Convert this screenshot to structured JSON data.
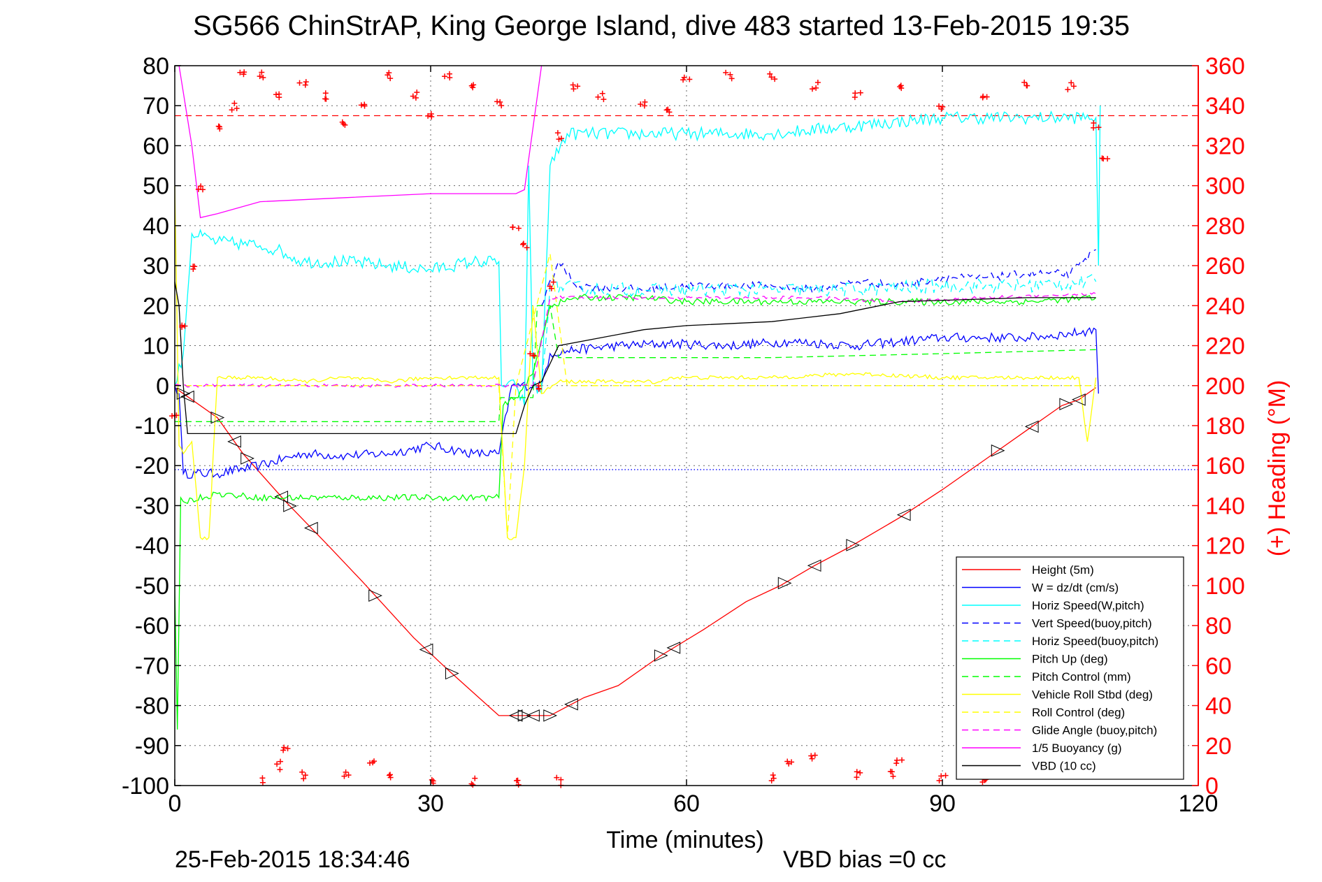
{
  "chart_data": {
    "type": "line",
    "title": "SG566 ChinStrAP, King George Island, dive 483 started 13-Feb-2015 19:35",
    "xlabel": "Time (minutes)",
    "ylabel_right": "(+) Heading (°M)",
    "footer_left": "25-Feb-2015 18:34:46",
    "footer_right": "VBD bias =0 cc",
    "xlim": [
      0,
      120
    ],
    "ylim_left": [
      -100,
      80
    ],
    "ylim_right": [
      0,
      360
    ],
    "x_ticks": [
      0,
      30,
      60,
      90,
      120
    ],
    "y_ticks_left": [
      80,
      70,
      60,
      50,
      40,
      30,
      20,
      10,
      0,
      -10,
      -20,
      -30,
      -40,
      -50,
      -60,
      -70,
      -80,
      -90,
      -100
    ],
    "y_ticks_right": [
      360,
      340,
      320,
      300,
      280,
      260,
      240,
      220,
      200,
      180,
      160,
      140,
      120,
      100,
      80,
      60,
      40,
      20,
      0
    ],
    "grid": true,
    "legend_position": "bottom-right",
    "colors": {
      "red": "#ff0000",
      "blue": "#0000ff",
      "cyan": "#00ffff",
      "green": "#00ff00",
      "yellow": "#ffff00",
      "magenta": "#ff00ff",
      "black": "#000000"
    },
    "reference_lines": [
      {
        "axis": "right",
        "y": 335,
        "color": "#ff0000",
        "dash": true
      },
      {
        "axis": "left",
        "y": -21,
        "color": "#0000ff",
        "dash": "dot"
      }
    ],
    "series": [
      {
        "name": "Height (5m)",
        "color": "#ff0000",
        "dash": false,
        "noise": 0,
        "points": [
          [
            0,
            -0.5
          ],
          [
            1,
            -2
          ],
          [
            5,
            -8
          ],
          [
            8,
            -17
          ],
          [
            13,
            -29
          ],
          [
            18,
            -40
          ],
          [
            22,
            -49
          ],
          [
            28,
            -63
          ],
          [
            32,
            -71
          ],
          [
            38,
            -82.5
          ],
          [
            41,
            -82.5
          ],
          [
            44,
            -82.5
          ],
          [
            48,
            -78
          ],
          [
            52,
            -75
          ],
          [
            57,
            -67.5
          ],
          [
            62,
            -61
          ],
          [
            67,
            -54
          ],
          [
            71,
            -50
          ],
          [
            75,
            -45
          ],
          [
            79,
            -40.5
          ],
          [
            85,
            -33
          ],
          [
            90,
            -26
          ],
          [
            96,
            -17
          ],
          [
            100,
            -11
          ],
          [
            104,
            -5
          ],
          [
            106,
            -3.5
          ],
          [
            108,
            -0.5
          ]
        ]
      },
      {
        "name": "W = dz/dt (cm/s)",
        "color": "#0000ff",
        "dash": false,
        "noise": 1.2,
        "points": [
          [
            0,
            0
          ],
          [
            0.5,
            -2
          ],
          [
            1,
            -22
          ],
          [
            5,
            -22
          ],
          [
            10,
            -20
          ],
          [
            15,
            -17
          ],
          [
            20,
            -17.5
          ],
          [
            25,
            -17
          ],
          [
            30,
            -15
          ],
          [
            35,
            -17
          ],
          [
            38,
            -17
          ],
          [
            39.5,
            0
          ],
          [
            43,
            0
          ],
          [
            44,
            8
          ],
          [
            47,
            9
          ],
          [
            52,
            10
          ],
          [
            58,
            10.5
          ],
          [
            65,
            10
          ],
          [
            72,
            11
          ],
          [
            80,
            10
          ],
          [
            85,
            11
          ],
          [
            90,
            12
          ],
          [
            95,
            12
          ],
          [
            100,
            12
          ],
          [
            105,
            13
          ],
          [
            108,
            14
          ],
          [
            108.3,
            -2
          ]
        ]
      },
      {
        "name": "Horiz Speed(W,pitch)",
        "color": "#00ffff",
        "dash": false,
        "noise": 1.6,
        "points": [
          [
            0,
            0
          ],
          [
            1,
            8
          ],
          [
            2,
            38
          ],
          [
            5,
            36
          ],
          [
            10,
            35
          ],
          [
            12,
            34
          ],
          [
            15,
            31
          ],
          [
            20,
            31
          ],
          [
            25,
            30
          ],
          [
            30,
            29
          ],
          [
            35,
            31
          ],
          [
            38,
            31
          ],
          [
            38.3,
            0
          ],
          [
            40,
            0
          ],
          [
            41,
            -5
          ],
          [
            41.5,
            55
          ],
          [
            42,
            0
          ],
          [
            43,
            -2
          ],
          [
            44,
            55
          ],
          [
            46,
            63
          ],
          [
            60,
            63
          ],
          [
            70,
            63
          ],
          [
            80,
            65
          ],
          [
            90,
            67
          ],
          [
            100,
            67
          ],
          [
            108,
            67
          ],
          [
            108.3,
            30
          ],
          [
            108.5,
            70
          ]
        ]
      },
      {
        "name": "Vert Speed(buoy,pitch)",
        "color": "#0000ff",
        "dash": true,
        "noise": 1.0,
        "points": [
          [
            43,
            20
          ],
          [
            45,
            31
          ],
          [
            47,
            25
          ],
          [
            55,
            24
          ],
          [
            60,
            25
          ],
          [
            70,
            25
          ],
          [
            75,
            24
          ],
          [
            80,
            26
          ],
          [
            85,
            25
          ],
          [
            90,
            27
          ],
          [
            95,
            27
          ],
          [
            100,
            28
          ],
          [
            105,
            28
          ],
          [
            108,
            34
          ]
        ]
      },
      {
        "name": "Horiz Speed(buoy,pitch)",
        "color": "#00ffff",
        "dash": true,
        "noise": 1.8,
        "points": [
          [
            43,
            0
          ],
          [
            44,
            25
          ],
          [
            50,
            24
          ],
          [
            60,
            24
          ],
          [
            70,
            24
          ],
          [
            80,
            24
          ],
          [
            90,
            25
          ],
          [
            100,
            25
          ],
          [
            108,
            26
          ]
        ]
      },
      {
        "name": "Pitch Up (deg)",
        "color": "#00ff00",
        "dash": false,
        "noise": 0.8,
        "points": [
          [
            0,
            -50
          ],
          [
            0.3,
            -86
          ],
          [
            0.7,
            -28
          ],
          [
            1,
            -29
          ],
          [
            5,
            -27
          ],
          [
            10,
            -28
          ],
          [
            20,
            -28
          ],
          [
            30,
            -28
          ],
          [
            38,
            -28
          ],
          [
            38.5,
            -5
          ],
          [
            40,
            -3
          ],
          [
            42,
            3
          ],
          [
            44,
            20
          ],
          [
            47,
            22
          ],
          [
            55,
            22
          ],
          [
            60,
            21
          ],
          [
            70,
            21
          ],
          [
            80,
            21
          ],
          [
            90,
            21
          ],
          [
            100,
            21
          ],
          [
            108,
            22
          ]
        ]
      },
      {
        "name": "Pitch Control (mm)",
        "color": "#00ff00",
        "dash": true,
        "noise": 0,
        "points": [
          [
            0,
            -9
          ],
          [
            38,
            -9
          ],
          [
            38.2,
            -3
          ],
          [
            42,
            -3
          ],
          [
            42.5,
            20
          ],
          [
            44,
            20
          ],
          [
            45,
            7
          ],
          [
            70,
            7
          ],
          [
            90,
            8
          ],
          [
            108,
            9
          ]
        ]
      },
      {
        "name": "Vehicle Roll Stbd (deg)",
        "color": "#ffff00",
        "dash": false,
        "noise": 0.5,
        "points": [
          [
            0,
            50
          ],
          [
            0.5,
            -15
          ],
          [
            1,
            -17
          ],
          [
            2,
            -14
          ],
          [
            3,
            -38
          ],
          [
            4,
            -38
          ],
          [
            5,
            2
          ],
          [
            10,
            2
          ],
          [
            15,
            1
          ],
          [
            20,
            2
          ],
          [
            25,
            1
          ],
          [
            30,
            2
          ],
          [
            35,
            2
          ],
          [
            38,
            2
          ],
          [
            39,
            -38
          ],
          [
            40,
            -38
          ],
          [
            41,
            -20
          ],
          [
            42,
            20
          ],
          [
            43,
            -2
          ],
          [
            45,
            1
          ],
          [
            50,
            1
          ],
          [
            57,
            1
          ],
          [
            58,
            2
          ],
          [
            60,
            2
          ],
          [
            70,
            2
          ],
          [
            80,
            3
          ],
          [
            90,
            2
          ],
          [
            100,
            2
          ],
          [
            106,
            2
          ],
          [
            107,
            -14
          ],
          [
            108,
            2
          ]
        ]
      },
      {
        "name": "Roll Control (deg)",
        "color": "#ffff00",
        "dash": true,
        "noise": 0,
        "points": [
          [
            0,
            0
          ],
          [
            38,
            0
          ],
          [
            39,
            -38
          ],
          [
            40,
            0
          ],
          [
            44,
            33
          ],
          [
            46,
            0
          ],
          [
            108,
            0
          ]
        ]
      },
      {
        "name": "Glide Angle (buoy,pitch)",
        "color": "#ff00ff",
        "dash": true,
        "noise": 0.4,
        "points": [
          [
            0,
            0
          ],
          [
            39,
            0
          ],
          [
            42,
            0
          ],
          [
            44,
            22
          ],
          [
            60,
            22
          ],
          [
            75,
            22
          ],
          [
            85,
            21
          ],
          [
            95,
            22
          ],
          [
            108,
            23
          ]
        ]
      },
      {
        "name": "1/5 Buoyancy (g)",
        "color": "#ff00ff",
        "dash": false,
        "noise": 0,
        "points": [
          [
            0.5,
            80
          ],
          [
            2,
            60
          ],
          [
            3,
            42
          ],
          [
            5,
            43
          ],
          [
            10,
            46
          ],
          [
            20,
            47
          ],
          [
            30,
            48
          ],
          [
            40,
            48
          ],
          [
            41,
            49
          ],
          [
            43,
            80
          ]
        ]
      },
      {
        "name": "VBD (10 cc)",
        "color": "#000000",
        "dash": false,
        "noise": 0,
        "points": [
          [
            0,
            26
          ],
          [
            0.5,
            20
          ],
          [
            1,
            0
          ],
          [
            1.5,
            -12
          ],
          [
            40,
            -12
          ],
          [
            41,
            -5
          ],
          [
            42,
            0
          ],
          [
            43,
            1
          ],
          [
            45,
            10
          ],
          [
            50,
            12
          ],
          [
            55,
            14
          ],
          [
            60,
            15
          ],
          [
            70,
            16
          ],
          [
            78,
            18
          ],
          [
            85,
            21
          ],
          [
            100,
            22
          ],
          [
            108,
            22
          ]
        ]
      },
      {
        "name": "Heading (°M)",
        "axis": "right",
        "color": "#ff0000",
        "marker": "+",
        "line": false,
        "noise": 4,
        "points": [
          [
            0,
            185
          ],
          [
            1,
            230
          ],
          [
            2,
            260
          ],
          [
            3,
            300
          ],
          [
            5,
            330
          ],
          [
            7,
            340
          ],
          [
            8,
            355
          ],
          [
            10,
            355
          ],
          [
            12,
            345
          ],
          [
            15,
            350
          ],
          [
            18,
            345
          ],
          [
            20,
            330
          ],
          [
            22,
            340
          ],
          [
            25,
            355
          ],
          [
            28,
            345
          ],
          [
            30,
            335
          ],
          [
            32,
            355
          ],
          [
            35,
            350
          ],
          [
            38,
            340
          ],
          [
            40,
            280
          ],
          [
            41,
            270
          ],
          [
            42,
            215
          ],
          [
            43,
            200
          ],
          [
            44,
            250
          ],
          [
            45,
            325
          ],
          [
            47,
            350
          ],
          [
            50,
            345
          ],
          [
            55,
            342
          ],
          [
            58,
            338
          ],
          [
            60,
            355
          ],
          [
            65,
            355
          ],
          [
            70,
            355
          ],
          [
            75,
            350
          ],
          [
            80,
            345
          ],
          [
            85,
            350
          ],
          [
            90,
            340
          ],
          [
            95,
            345
          ],
          [
            100,
            350
          ],
          [
            105,
            350
          ],
          [
            108,
            330
          ],
          [
            109,
            315
          ],
          [
            10,
            2
          ],
          [
            12,
            10
          ],
          [
            13,
            18
          ],
          [
            15,
            5
          ],
          [
            20,
            5
          ],
          [
            23,
            12
          ],
          [
            25,
            6
          ],
          [
            30,
            3
          ],
          [
            35,
            2
          ],
          [
            40,
            1
          ],
          [
            45,
            2
          ],
          [
            70,
            4
          ],
          [
            72,
            10
          ],
          [
            75,
            14
          ],
          [
            80,
            5
          ],
          [
            84,
            6
          ],
          [
            85,
            12
          ],
          [
            90,
            4
          ],
          [
            95,
            2
          ],
          [
            100,
            3
          ],
          [
            102,
            10
          ]
        ]
      }
    ]
  }
}
